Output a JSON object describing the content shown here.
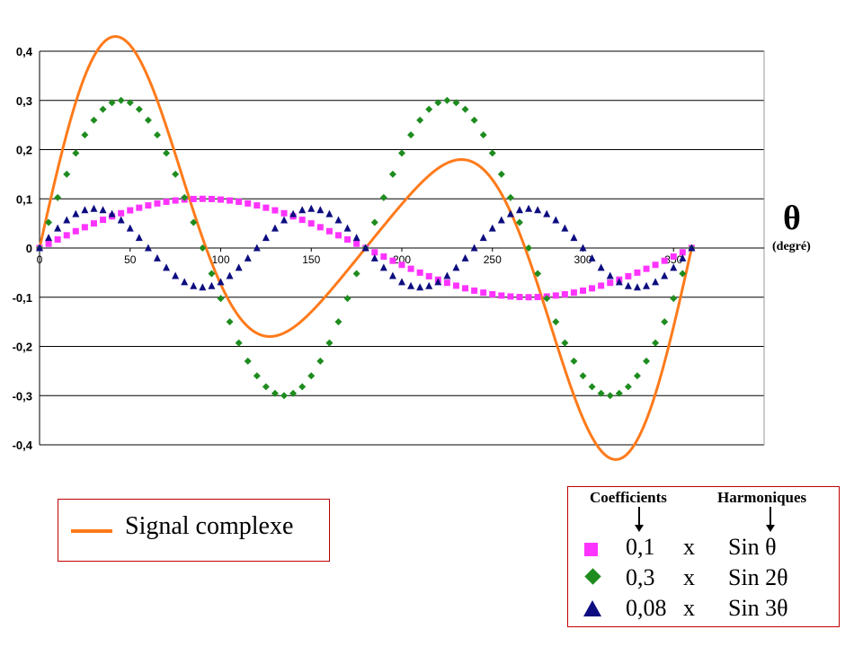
{
  "chart_data": {
    "type": "line",
    "title": "",
    "xlabel": "θ",
    "xlabel_unit": "(degré)",
    "ylabel": "",
    "xlim": [
      0,
      400
    ],
    "ylim": [
      -0.4,
      0.4
    ],
    "x_ticks": [
      0,
      50,
      100,
      150,
      200,
      250,
      300,
      350
    ],
    "x_tick_labels": [
      "0",
      "50",
      "100",
      "150",
      "200",
      "250",
      "300",
      "350"
    ],
    "y_ticks": [
      0.4,
      0.3,
      0.2,
      0.1,
      0,
      -0.1,
      -0.2,
      -0.3,
      -0.4
    ],
    "y_tick_labels": [
      "0,4",
      "0,3",
      "0,2",
      "0,1",
      "0",
      "-0,1",
      "-0,2",
      "-0,3",
      "-0,4"
    ],
    "grid": "horizontal",
    "x_step": 5,
    "x_end": 360,
    "series": [
      {
        "name": "0,1 x Sin θ",
        "coefficient": 0.1,
        "harmonic": 1,
        "marker": "square",
        "color": "#ff33ff"
      },
      {
        "name": "0,3 x Sin 2θ",
        "coefficient": 0.3,
        "harmonic": 2,
        "marker": "diamond",
        "color": "#1e8c1e"
      },
      {
        "name": "0,08 x Sin 3θ",
        "coefficient": 0.08,
        "harmonic": 3,
        "marker": "triangle",
        "color": "#0d0d80"
      },
      {
        "name": "Signal complexe",
        "type": "line",
        "color": "#ff7a1a",
        "sum_of": [
          0,
          1,
          2
        ]
      }
    ]
  },
  "legend": {
    "signal_label": "Signal complexe",
    "header_coefficients": "Coefficients",
    "header_harmoniques": "Harmoniques",
    "rows": [
      {
        "coef": "0,1",
        "x": "x",
        "harm": "Sin θ"
      },
      {
        "coef": "0,3",
        "x": "x",
        "harm": "Sin 2θ"
      },
      {
        "coef": "0,08",
        "x": "x",
        "harm": "Sin 3θ"
      }
    ]
  }
}
